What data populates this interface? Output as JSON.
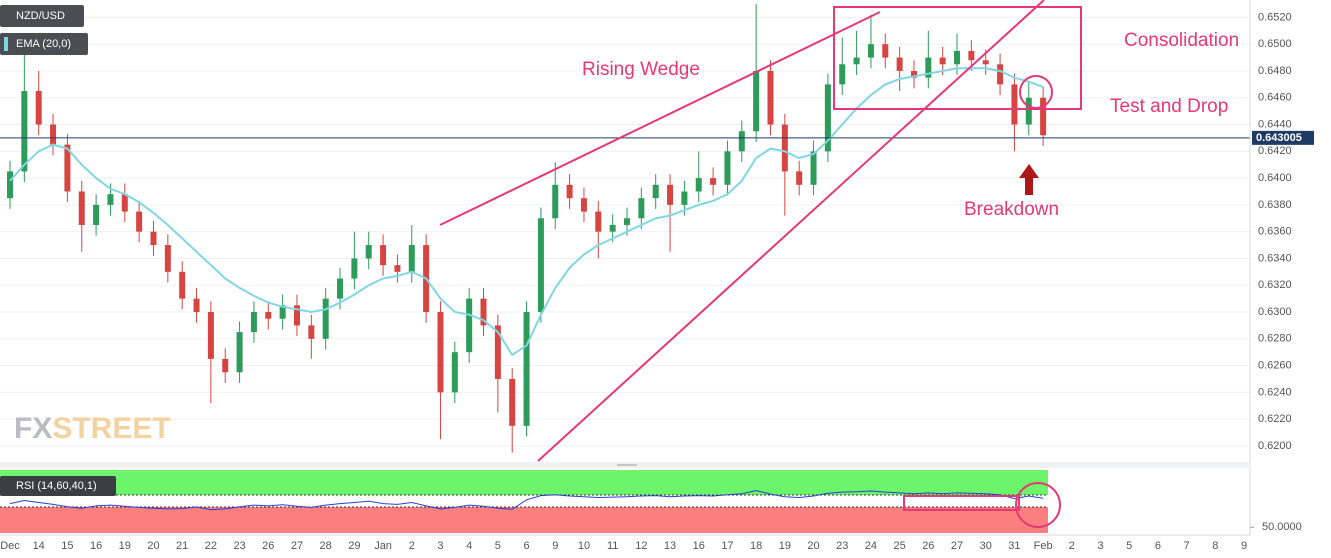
{
  "chart_data": {
    "type": "candlestick",
    "title": "NZD/USD",
    "categories": [
      "Dec",
      null,
      "14",
      null,
      "15",
      null,
      "16",
      null,
      "19",
      null,
      "20",
      null,
      "21",
      null,
      "22",
      null,
      "23",
      null,
      "26",
      null,
      "27",
      null,
      "28",
      null,
      "29",
      null,
      "Jan",
      null,
      "2",
      null,
      "3",
      null,
      "4",
      null,
      "5",
      null,
      "6",
      null,
      "9",
      null,
      "10",
      null,
      "11",
      null,
      "12",
      null,
      "13",
      null,
      "16",
      null,
      "17",
      null,
      "18",
      null,
      "19",
      null,
      "20",
      null,
      "23",
      null,
      "24",
      null,
      "25",
      null,
      "26",
      null,
      "27",
      null,
      "30",
      null,
      "31",
      null,
      "Feb",
      null,
      "2",
      null,
      "3",
      null,
      "5",
      null,
      "6",
      null,
      "7",
      null,
      "8",
      null,
      "9"
    ],
    "open": [
      0.6385,
      0.6405,
      0.6465,
      0.644,
      0.6425,
      0.639,
      0.6365,
      0.638,
      0.6388,
      0.6375,
      0.636,
      0.635,
      0.633,
      0.631,
      0.63,
      0.6265,
      0.6255,
      0.6285,
      0.63,
      0.6295,
      0.6305,
      0.629,
      0.628,
      0.631,
      0.6325,
      0.634,
      0.635,
      0.6335,
      0.633,
      0.635,
      0.63,
      0.624,
      0.627,
      0.631,
      0.629,
      0.625,
      0.6215,
      0.63,
      0.637,
      0.6395,
      0.6385,
      0.6375,
      0.636,
      0.6365,
      0.637,
      0.6385,
      0.6395,
      0.638,
      0.639,
      0.64,
      0.6395,
      0.642,
      0.6435,
      0.648,
      0.644,
      0.6405,
      0.6395,
      0.642,
      0.647,
      0.6485,
      0.649,
      0.65,
      0.649,
      0.648,
      0.6475,
      0.649,
      0.6485,
      0.6495,
      0.6488,
      0.6485,
      0.647,
      0.644,
      0.646,
      null,
      null,
      null,
      null,
      null,
      null,
      null,
      null,
      null,
      null,
      null,
      null,
      null,
      null
    ],
    "high": [
      0.6413,
      0.6505,
      0.648,
      0.6448,
      0.6433,
      0.6398,
      0.6388,
      0.6396,
      0.6396,
      0.6383,
      0.6368,
      0.6358,
      0.6338,
      0.6318,
      0.6308,
      0.6273,
      0.6293,
      0.6308,
      0.6308,
      0.6313,
      0.6313,
      0.6298,
      0.6318,
      0.6333,
      0.636,
      0.636,
      0.6358,
      0.6343,
      0.6365,
      0.6358,
      0.6308,
      0.6278,
      0.6318,
      0.6318,
      0.6298,
      0.6258,
      0.6308,
      0.6378,
      0.6412,
      0.6403,
      0.6393,
      0.6383,
      0.6373,
      0.6378,
      0.6393,
      0.6403,
      0.6403,
      0.6398,
      0.642,
      0.6408,
      0.6428,
      0.6443,
      0.653,
      0.6488,
      0.6448,
      0.6413,
      0.6428,
      0.6478,
      0.6505,
      0.651,
      0.6522,
      0.6508,
      0.6498,
      0.6488,
      0.651,
      0.6498,
      0.6508,
      0.6503,
      0.6496,
      0.6493,
      0.6478,
      0.6472,
      0.6468,
      null,
      null,
      null,
      null,
      null,
      null,
      null,
      null,
      null,
      null,
      null,
      null,
      null,
      null
    ],
    "low": [
      0.6377,
      0.6397,
      0.6432,
      0.6417,
      0.6382,
      0.6345,
      0.6357,
      0.6372,
      0.6367,
      0.6352,
      0.6342,
      0.6322,
      0.6302,
      0.6292,
      0.6232,
      0.6247,
      0.6247,
      0.6277,
      0.6287,
      0.6287,
      0.6282,
      0.6265,
      0.6272,
      0.6302,
      0.6317,
      0.6332,
      0.6327,
      0.6322,
      0.6322,
      0.6292,
      0.6205,
      0.6232,
      0.6262,
      0.6282,
      0.6225,
      0.6195,
      0.6207,
      0.6292,
      0.6362,
      0.6377,
      0.6367,
      0.634,
      0.6352,
      0.6357,
      0.6362,
      0.6377,
      0.6345,
      0.6372,
      0.6382,
      0.6387,
      0.6387,
      0.6412,
      0.6427,
      0.6432,
      0.6372,
      0.6387,
      0.6387,
      0.6412,
      0.6462,
      0.6477,
      0.6482,
      0.6482,
      0.6465,
      0.6467,
      0.6467,
      0.6477,
      0.6477,
      0.648,
      0.6477,
      0.6462,
      0.642,
      0.6432,
      0.6424,
      null,
      null,
      null,
      null,
      null,
      null,
      null,
      null,
      null,
      null,
      null,
      null,
      null,
      null
    ],
    "close": [
      0.6405,
      0.6465,
      0.644,
      0.6425,
      0.639,
      0.6365,
      0.638,
      0.6388,
      0.6375,
      0.636,
      0.635,
      0.633,
      0.631,
      0.63,
      0.6265,
      0.6255,
      0.6285,
      0.63,
      0.6295,
      0.6305,
      0.629,
      0.628,
      0.631,
      0.6325,
      0.634,
      0.635,
      0.6335,
      0.633,
      0.635,
      0.63,
      0.624,
      0.627,
      0.631,
      0.629,
      0.625,
      0.6215,
      0.63,
      0.637,
      0.6395,
      0.6385,
      0.6375,
      0.636,
      0.6365,
      0.637,
      0.6385,
      0.6395,
      0.638,
      0.639,
      0.64,
      0.6395,
      0.642,
      0.6435,
      0.648,
      0.644,
      0.6405,
      0.6395,
      0.642,
      0.647,
      0.6485,
      0.649,
      0.65,
      0.649,
      0.648,
      0.6475,
      0.649,
      0.6485,
      0.6495,
      0.6488,
      0.6485,
      0.647,
      0.644,
      0.646,
      0.6432,
      null,
      null,
      null,
      null,
      null,
      null,
      null,
      null,
      null,
      null,
      null,
      null,
      null,
      null
    ],
    "up_color": "#2d9b5a",
    "down_color": "#d64541",
    "ylim": [
      0.6188,
      0.6533
    ],
    "yticks": [
      {
        "value": 0.62,
        "label": "0.6200"
      },
      {
        "value": 0.622,
        "label": "0.6220"
      },
      {
        "value": 0.624,
        "label": "0.6240"
      },
      {
        "value": 0.626,
        "label": "0.6260"
      },
      {
        "value": 0.628,
        "label": "0.6280"
      },
      {
        "value": 0.63,
        "label": "0.6300"
      },
      {
        "value": 0.632,
        "label": "0.6320"
      },
      {
        "value": 0.634,
        "label": "0.6340"
      },
      {
        "value": 0.636,
        "label": "0.6360"
      },
      {
        "value": 0.638,
        "label": "0.6380"
      },
      {
        "value": 0.64,
        "label": "0.6400"
      },
      {
        "value": 0.642,
        "label": "0.6420"
      },
      {
        "value": 0.644,
        "label": "0.6440"
      },
      {
        "value": 0.646,
        "label": "0.6460"
      },
      {
        "value": 0.648,
        "label": "0.6480"
      },
      {
        "value": 0.65,
        "label": "0.6500"
      },
      {
        "value": 0.652,
        "label": "0.6520"
      }
    ],
    "grid": true,
    "last_price": 0.643005,
    "overlay": {
      "name": "EMA (20,0)",
      "color": "#7fd6e4",
      "values": [
        0.6398,
        0.641,
        0.642,
        0.6425,
        0.6422,
        0.641,
        0.64,
        0.6392,
        0.6388,
        0.6382,
        0.6374,
        0.6365,
        0.6355,
        0.6345,
        0.6335,
        0.6325,
        0.6318,
        0.6312,
        0.6307,
        0.6304,
        0.6302,
        0.63,
        0.6302,
        0.6307,
        0.6313,
        0.632,
        0.6325,
        0.6327,
        0.633,
        0.6325,
        0.631,
        0.63,
        0.6298,
        0.6294,
        0.6285,
        0.6268,
        0.6275,
        0.6298,
        0.6318,
        0.6333,
        0.6343,
        0.635,
        0.6355,
        0.636,
        0.6365,
        0.637,
        0.6372,
        0.6376,
        0.638,
        0.6383,
        0.6388,
        0.6398,
        0.6415,
        0.6422,
        0.642,
        0.6415,
        0.6418,
        0.6428,
        0.644,
        0.6452,
        0.6462,
        0.647,
        0.6474,
        0.6476,
        0.6478,
        0.648,
        0.6482,
        0.6482,
        0.6482,
        0.648,
        0.6475,
        0.6472,
        0.6468,
        null,
        null,
        null,
        null,
        null,
        null,
        null,
        null,
        null,
        null,
        null,
        null,
        null,
        null
      ]
    },
    "indicator": {
      "name": "RSI (14,60,40,1)",
      "color": "#2a3fd0",
      "values": [
        56.2,
        57.0,
        56.5,
        56.0,
        55.4,
        55.0,
        55.6,
        55.8,
        55.5,
        55.2,
        55.0,
        54.8,
        54.9,
        55.3,
        54.6,
        54.8,
        55.4,
        55.8,
        55.6,
        55.9,
        55.5,
        55.2,
        55.8,
        56.2,
        56.5,
        56.8,
        56.2,
        56.0,
        56.5,
        55.6,
        54.8,
        55.2,
        55.8,
        55.5,
        55.0,
        54.7,
        57.2,
        58.3,
        58.5,
        58.2,
        58.0,
        57.8,
        57.9,
        58.0,
        58.2,
        58.3,
        58.0,
        58.2,
        58.3,
        58.2,
        58.5,
        58.8,
        59.6,
        58.7,
        58.0,
        57.8,
        58.2,
        58.9,
        59.2,
        59.3,
        59.5,
        59.2,
        59.0,
        58.8,
        59.0,
        58.8,
        59.0,
        58.9,
        58.8,
        58.5,
        57.5,
        58.2,
        57.6,
        null,
        null,
        null,
        null,
        null,
        null,
        null,
        null,
        null,
        null,
        null,
        null,
        null,
        null
      ],
      "ylim": [
        48.5,
        65
      ],
      "yticks": [
        {
          "value": 50,
          "label": "50.0000"
        }
      ]
    },
    "annotations": {
      "pattern": "Rising Wedge",
      "range": "Consolidation",
      "retest": "Test and Drop",
      "break": "Breakdown"
    },
    "watermark": {
      "first": "FX",
      "second": "STREET"
    }
  }
}
